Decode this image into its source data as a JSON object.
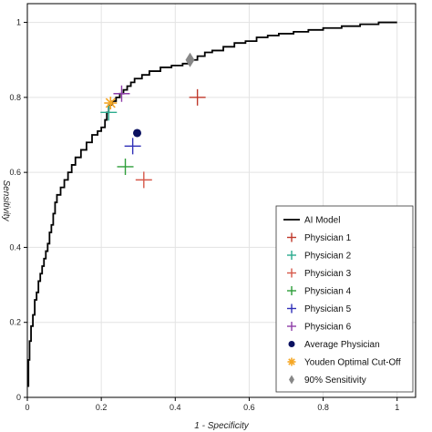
{
  "chart_data": {
    "type": "line",
    "xlabel": "1 - Specificity",
    "ylabel": "Sensitivity",
    "xlim": [
      0,
      1.05
    ],
    "ylim": [
      0,
      1.05
    ],
    "xticks": [
      0,
      0.2,
      0.4,
      0.6,
      0.8,
      1
    ],
    "yticks": [
      0,
      0.2,
      0.4,
      0.6,
      0.8,
      1
    ],
    "tick_labels_x": [
      "0",
      "0.2",
      "0.4",
      "0.6",
      "0.8",
      "1"
    ],
    "tick_labels_y": [
      "0",
      "0.2",
      "0.4",
      "0.6",
      "0.8",
      "1"
    ],
    "grid": true,
    "legend_position": "bottom-right",
    "roc_series": {
      "name": "AI Model",
      "color": "#000000",
      "points": [
        [
          0,
          0.03
        ],
        [
          0.003,
          0.1
        ],
        [
          0.006,
          0.15
        ],
        [
          0.01,
          0.19
        ],
        [
          0.015,
          0.22
        ],
        [
          0.02,
          0.26
        ],
        [
          0.025,
          0.28
        ],
        [
          0.03,
          0.31
        ],
        [
          0.035,
          0.33
        ],
        [
          0.04,
          0.35
        ],
        [
          0.045,
          0.37
        ],
        [
          0.05,
          0.39
        ],
        [
          0.055,
          0.41
        ],
        [
          0.06,
          0.44
        ],
        [
          0.065,
          0.46
        ],
        [
          0.07,
          0.49
        ],
        [
          0.075,
          0.52
        ],
        [
          0.08,
          0.54
        ],
        [
          0.09,
          0.56
        ],
        [
          0.1,
          0.58
        ],
        [
          0.11,
          0.6
        ],
        [
          0.12,
          0.62
        ],
        [
          0.13,
          0.64
        ],
        [
          0.145,
          0.66
        ],
        [
          0.16,
          0.68
        ],
        [
          0.175,
          0.7
        ],
        [
          0.19,
          0.71
        ],
        [
          0.2,
          0.72
        ],
        [
          0.21,
          0.74
        ],
        [
          0.215,
          0.76
        ],
        [
          0.22,
          0.78
        ],
        [
          0.23,
          0.79
        ],
        [
          0.24,
          0.8
        ],
        [
          0.25,
          0.81
        ],
        [
          0.26,
          0.82
        ],
        [
          0.27,
          0.83
        ],
        [
          0.28,
          0.84
        ],
        [
          0.29,
          0.85
        ],
        [
          0.31,
          0.86
        ],
        [
          0.33,
          0.87
        ],
        [
          0.36,
          0.88
        ],
        [
          0.39,
          0.885
        ],
        [
          0.42,
          0.89
        ],
        [
          0.44,
          0.9
        ],
        [
          0.46,
          0.91
        ],
        [
          0.48,
          0.92
        ],
        [
          0.5,
          0.925
        ],
        [
          0.53,
          0.935
        ],
        [
          0.56,
          0.945
        ],
        [
          0.59,
          0.95
        ],
        [
          0.62,
          0.96
        ],
        [
          0.65,
          0.965
        ],
        [
          0.68,
          0.97
        ],
        [
          0.72,
          0.975
        ],
        [
          0.76,
          0.98
        ],
        [
          0.8,
          0.985
        ],
        [
          0.85,
          0.99
        ],
        [
          0.9,
          0.995
        ],
        [
          0.95,
          1.0
        ],
        [
          1.0,
          1.0
        ]
      ]
    },
    "physicians": [
      {
        "name": "Physician 1",
        "x": 0.46,
        "y": 0.8,
        "color": "#c0392b"
      },
      {
        "name": "Physician 2",
        "x": 0.22,
        "y": 0.76,
        "color": "#2bab8e"
      },
      {
        "name": "Physician 3",
        "x": 0.315,
        "y": 0.58,
        "color": "#d6584a"
      },
      {
        "name": "Physician 4",
        "x": 0.265,
        "y": 0.615,
        "color": "#2e9e3a"
      },
      {
        "name": "Physician 5",
        "x": 0.285,
        "y": 0.67,
        "color": "#3030b8"
      },
      {
        "name": "Physician 6",
        "x": 0.255,
        "y": 0.81,
        "color": "#8e3ea8"
      }
    ],
    "average_physician": {
      "name": "Average Physician",
      "x": 0.297,
      "y": 0.705,
      "color": "#0a1060"
    },
    "youden": {
      "name": "Youden Optimal Cut-Off",
      "x": 0.225,
      "y": 0.785,
      "color": "#f5a623"
    },
    "sensitivity90": {
      "name": "90% Sensitivity",
      "x": 0.44,
      "y": 0.9,
      "color": "#888888"
    }
  }
}
